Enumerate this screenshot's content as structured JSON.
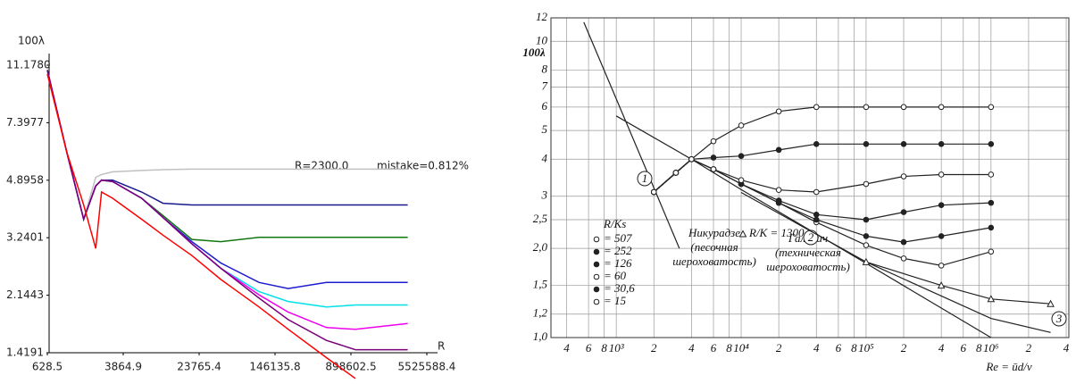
{
  "chart_data": [
    {
      "type": "line",
      "y_axis_label": "100λ",
      "x_axis_label": "R",
      "annotations": [
        "R=2300.0",
        "mistake=0.812%"
      ],
      "xlog": true,
      "ylog": true,
      "grid": false,
      "xlim": [
        628.5,
        5525588.4
      ],
      "xticks": [
        628.5,
        3864.9,
        23765.4,
        146135.8,
        898602.5,
        5525588.4
      ],
      "ylim": [
        1.4191,
        11.178
      ],
      "yticks": [
        {
          "value": 11.178,
          "label": "11.1780"
        },
        7.3977,
        4.8958,
        3.2401,
        2.1443,
        1.4191
      ],
      "x": [
        628.5,
        1000,
        1500,
        2000,
        2300,
        3000,
        6000,
        10000,
        20000,
        40000,
        100000,
        200000,
        500000,
        1000000,
        3500000
      ],
      "series": [
        {
          "color": "#c0c0c0",
          "values": [
            10.8,
            6.0,
            3.7,
            5.0,
            5.1,
            5.2,
            5.25,
            5.28,
            5.3,
            5.3,
            5.3,
            5.3,
            5.3,
            5.3,
            5.3
          ]
        },
        {
          "color": "#1a1a8c",
          "values": [
            10.8,
            6.0,
            3.7,
            4.7,
            4.9,
            4.9,
            4.5,
            4.15,
            4.1,
            4.1,
            4.1,
            4.1,
            4.1,
            4.1,
            4.1
          ]
        },
        {
          "color": "#117711",
          "values": [
            10.8,
            6.0,
            3.7,
            4.7,
            4.9,
            4.85,
            4.3,
            3.8,
            3.2,
            3.15,
            3.25,
            3.25,
            3.25,
            3.25,
            3.25
          ]
        },
        {
          "color": "#1c1cd0",
          "values": [
            10.8,
            6.0,
            3.7,
            4.7,
            4.9,
            4.85,
            4.3,
            3.75,
            3.15,
            2.7,
            2.35,
            2.25,
            2.35,
            2.35,
            2.35
          ]
        },
        {
          "color": "#00e0e8",
          "values": [
            10.8,
            6.0,
            3.7,
            4.7,
            4.9,
            4.85,
            4.3,
            3.75,
            3.1,
            2.6,
            2.2,
            2.05,
            1.97,
            2.0,
            2.0
          ]
        },
        {
          "color": "#ee00ee",
          "values": [
            10.8,
            6.0,
            3.7,
            4.7,
            4.9,
            4.85,
            4.3,
            3.75,
            3.1,
            2.6,
            2.15,
            1.9,
            1.7,
            1.68,
            1.75
          ]
        },
        {
          "color": "#7a007a",
          "values": [
            10.8,
            6.0,
            3.7,
            4.7,
            4.9,
            4.85,
            4.3,
            3.75,
            3.1,
            2.6,
            2.1,
            1.8,
            1.55,
            1.45,
            1.45
          ]
        },
        {
          "color": "#ff0000",
          "values": [
            10.5,
            6.0,
            4.1,
            3.0,
            4.5,
            4.3,
            3.7,
            3.3,
            2.85,
            2.4,
            1.97,
            1.68,
            1.37,
            1.18,
            null
          ]
        }
      ]
    },
    {
      "type": "line",
      "y_axis_label": "100λ",
      "x_axis_label": "Re = ūd/ν",
      "legend_title": "R/Ks",
      "annotations": [
        "Никурадзе",
        "(песочная",
        "шероховатость)",
        "Галавич",
        "(техническая",
        "шероховатость)"
      ],
      "xlog": true,
      "ylog": true,
      "grid": true,
      "xlim": [
        300,
        4200000
      ],
      "xticks": [
        {
          "value": 400,
          "label": "4"
        },
        {
          "value": 600,
          "label": "6"
        },
        {
          "value": 800,
          "label": "8"
        },
        {
          "value": 1000,
          "label": "10³"
        },
        {
          "value": 2000,
          "label": "2"
        },
        {
          "value": 4000,
          "label": "4"
        },
        {
          "value": 6000,
          "label": "6"
        },
        {
          "value": 8000,
          "label": "8"
        },
        {
          "value": 10000,
          "label": "10⁴"
        },
        {
          "value": 20000,
          "label": "2"
        },
        {
          "value": 40000,
          "label": "4"
        },
        {
          "value": 60000,
          "label": "6"
        },
        {
          "value": 80000,
          "label": "8"
        },
        {
          "value": 100000,
          "label": "10⁵"
        },
        {
          "value": 200000,
          "label": "2"
        },
        {
          "value": 400000,
          "label": "4"
        },
        {
          "value": 600000,
          "label": "6"
        },
        {
          "value": 800000,
          "label": "8"
        },
        {
          "value": 1000000,
          "label": "10⁶"
        },
        {
          "value": 2000000,
          "label": "2"
        },
        {
          "value": 4000000,
          "label": "4"
        }
      ],
      "ylim": [
        1,
        12
      ],
      "yticks": [
        {
          "value": 1,
          "label": "1,0"
        },
        {
          "value": 1.2,
          "label": "1,2"
        },
        {
          "value": 1.5,
          "label": "1,5"
        },
        {
          "value": 2,
          "label": "2,0"
        },
        {
          "value": 2.5,
          "label": "2,5"
        },
        3,
        4,
        5,
        6,
        7,
        8,
        10,
        12
      ],
      "series": [
        {
          "name": "1",
          "color": "#222",
          "x": [
            550,
            1000,
            2000,
            3200
          ],
          "values": [
            11.6,
            6.4,
            3.2,
            2.0
          ]
        },
        {
          "name": "2",
          "color": "#222",
          "x": [
            1000,
            4000,
            10000,
            100000,
            1000000
          ],
          "values": [
            5.6,
            4.0,
            3.16,
            1.78,
            1.0
          ]
        },
        {
          "name": "3",
          "color": "#222",
          "x": [
            10000,
            100000,
            1000000,
            3000000
          ],
          "values": [
            3.09,
            1.8,
            1.16,
            1.04
          ]
        },
        {
          "name": "= 507",
          "color": "#222",
          "marker": "open",
          "x": [
            2000,
            3000,
            4000,
            6000,
            10000,
            20000,
            40000,
            100000,
            200000,
            400000,
            1000000
          ],
          "values": [
            3.1,
            3.6,
            4.0,
            3.7,
            3.3,
            2.85,
            2.45,
            2.05,
            1.85,
            1.75,
            1.95
          ]
        },
        {
          "name": "= 252",
          "color": "#222",
          "marker": "filled",
          "x": [
            2000,
            3000,
            4000,
            6000,
            10000,
            20000,
            40000,
            100000,
            200000,
            400000,
            1000000
          ],
          "values": [
            3.1,
            3.6,
            4.0,
            3.7,
            3.3,
            2.85,
            2.5,
            2.2,
            2.1,
            2.2,
            2.35
          ]
        },
        {
          "name": "= 126",
          "color": "#222",
          "marker": "filled",
          "x": [
            2000,
            3000,
            4000,
            6000,
            10000,
            20000,
            40000,
            100000,
            200000,
            400000,
            1000000
          ],
          "values": [
            3.1,
            3.6,
            4.0,
            3.7,
            3.3,
            2.9,
            2.6,
            2.5,
            2.65,
            2.8,
            2.85
          ]
        },
        {
          "name": "= 60",
          "color": "#222",
          "marker": "open",
          "x": [
            2000,
            3000,
            4000,
            6000,
            10000,
            20000,
            40000,
            100000,
            200000,
            400000,
            1000000
          ],
          "values": [
            3.1,
            3.6,
            4.0,
            3.7,
            3.4,
            3.15,
            3.1,
            3.3,
            3.5,
            3.55,
            3.55
          ]
        },
        {
          "name": "= 30,6",
          "color": "#222",
          "marker": "filled",
          "x": [
            2000,
            3000,
            4000,
            6000,
            10000,
            20000,
            40000,
            100000,
            200000,
            400000,
            1000000
          ],
          "values": [
            3.1,
            3.6,
            4.0,
            4.05,
            4.1,
            4.3,
            4.5,
            4.5,
            4.5,
            4.5,
            4.5
          ]
        },
        {
          "name": "= 15",
          "color": "#222",
          "marker": "open",
          "x": [
            2000,
            3000,
            4000,
            6000,
            10000,
            20000,
            40000,
            100000,
            200000,
            400000,
            1000000
          ],
          "values": [
            3.1,
            3.6,
            4.0,
            4.6,
            5.2,
            5.8,
            6.0,
            6.0,
            6.0,
            6.0,
            6.0
          ]
        },
        {
          "name": "R/K = 1300",
          "color": "#222",
          "marker": "triangle",
          "x": [
            100000,
            400000,
            1000000,
            3000000
          ],
          "values": [
            1.8,
            1.5,
            1.35,
            1.3
          ]
        }
      ]
    }
  ]
}
